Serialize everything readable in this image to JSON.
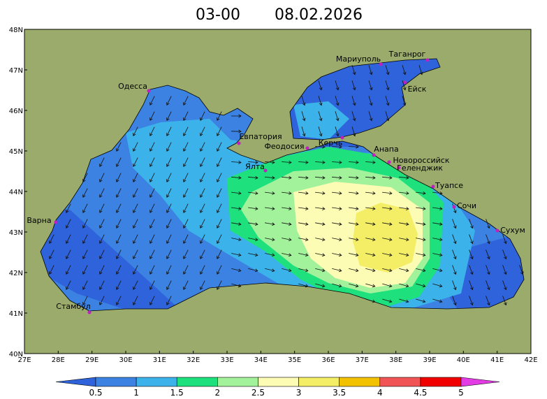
{
  "header": {
    "time": "03-00",
    "date": "08.02.2026"
  },
  "map": {
    "xticks": [
      {
        "value": 27,
        "label": "27E"
      },
      {
        "value": 28,
        "label": "28E"
      },
      {
        "value": 29,
        "label": "29E"
      },
      {
        "value": 30,
        "label": "30E"
      },
      {
        "value": 31,
        "label": "31E"
      },
      {
        "value": 32,
        "label": "32E"
      },
      {
        "value": 33,
        "label": "33E"
      },
      {
        "value": 34,
        "label": "34E"
      },
      {
        "value": 35,
        "label": "35E"
      },
      {
        "value": 36,
        "label": "36E"
      },
      {
        "value": 37,
        "label": "37E"
      },
      {
        "value": 38,
        "label": "38E"
      },
      {
        "value": 39,
        "label": "39E"
      },
      {
        "value": 40,
        "label": "40E"
      },
      {
        "value": 41,
        "label": "41E"
      },
      {
        "value": 42,
        "label": "42E"
      }
    ],
    "yticks": [
      {
        "value": 40,
        "label": "40N"
      },
      {
        "value": 41,
        "label": "41N"
      },
      {
        "value": 42,
        "label": "42N"
      },
      {
        "value": 43,
        "label": "43N"
      },
      {
        "value": 44,
        "label": "44N"
      },
      {
        "value": 45,
        "label": "45N"
      },
      {
        "value": 46,
        "label": "46N"
      },
      {
        "value": 47,
        "label": "47N"
      },
      {
        "value": 48,
        "label": "48N"
      }
    ],
    "xlim": [
      27,
      42
    ],
    "ylim": [
      40,
      48
    ],
    "cities": [
      "Одесса",
      "Мариуполь",
      "Таганрог",
      "Ейск",
      "Евпатория",
      "Феодосия",
      "Керчь",
      "Анапа",
      "Новороссийск",
      "Геленджик",
      "Ялта",
      "Туапсе",
      "Сочи",
      "Сухум",
      "Варна",
      "Стамбул"
    ]
  },
  "colorbar": {
    "labels": [
      0.5,
      1,
      1.5,
      2,
      2.5,
      3,
      3.5,
      4,
      4.5,
      5
    ],
    "colors": [
      "#2f63dc",
      "#3c82e2",
      "#3cb2ea",
      "#1ee07c",
      "#a2f29c",
      "#fdfcb4",
      "#f4ee66",
      "#f2c200",
      "#f05454",
      "#f00000",
      "#e43ce4"
    ]
  }
}
